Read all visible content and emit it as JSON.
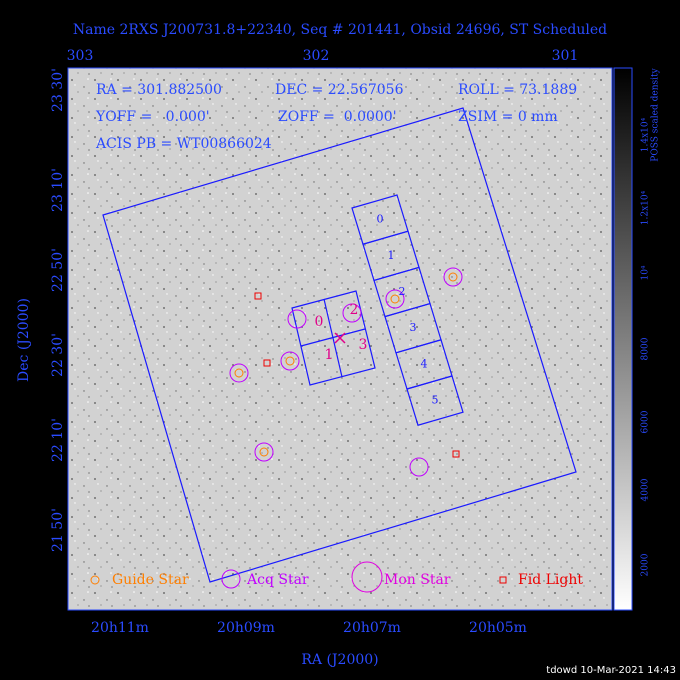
{
  "title": "Name 2RXS J200731.8+22340, Seq # 201441, Obsid 24696, ST Scheduled",
  "info": [
    "RA = 301.882500",
    "DEC = 22.567056",
    "ROLL = 73.1889",
    "YOFF =   0.000'",
    "ZOFF =  0.0000'",
    "ZSIM = 0 mm",
    "ACIS PB = WT00866024"
  ],
  "top_axis": [
    "303",
    "302",
    "301"
  ],
  "left_axis": [
    "23 30'",
    "23 10'",
    "22 50'",
    "22 30'",
    "22 10'",
    "21 50'"
  ],
  "bottom_axis": [
    "20h11m",
    "20h09m",
    "20h07m",
    "20h05m"
  ],
  "x_label": "RA (J2000)",
  "y_label": "Dec (J2000)",
  "colorbar": {
    "label": "POSS scaled density",
    "ticks": [
      "2000",
      "4000",
      "6000",
      "8000",
      "10⁴",
      "1.2x10⁴",
      "1.4x10⁴"
    ]
  },
  "acis_s_chips": [
    "0",
    "1",
    "2",
    "3",
    "4",
    "5"
  ],
  "acis_i_chips": [
    "0",
    "1",
    "2",
    "3"
  ],
  "legend": [
    "Guide Star",
    "Acq Star",
    "Mon Star",
    "Fid Light"
  ],
  "footer": "tdowd 10-Mar-2021 14:43"
}
